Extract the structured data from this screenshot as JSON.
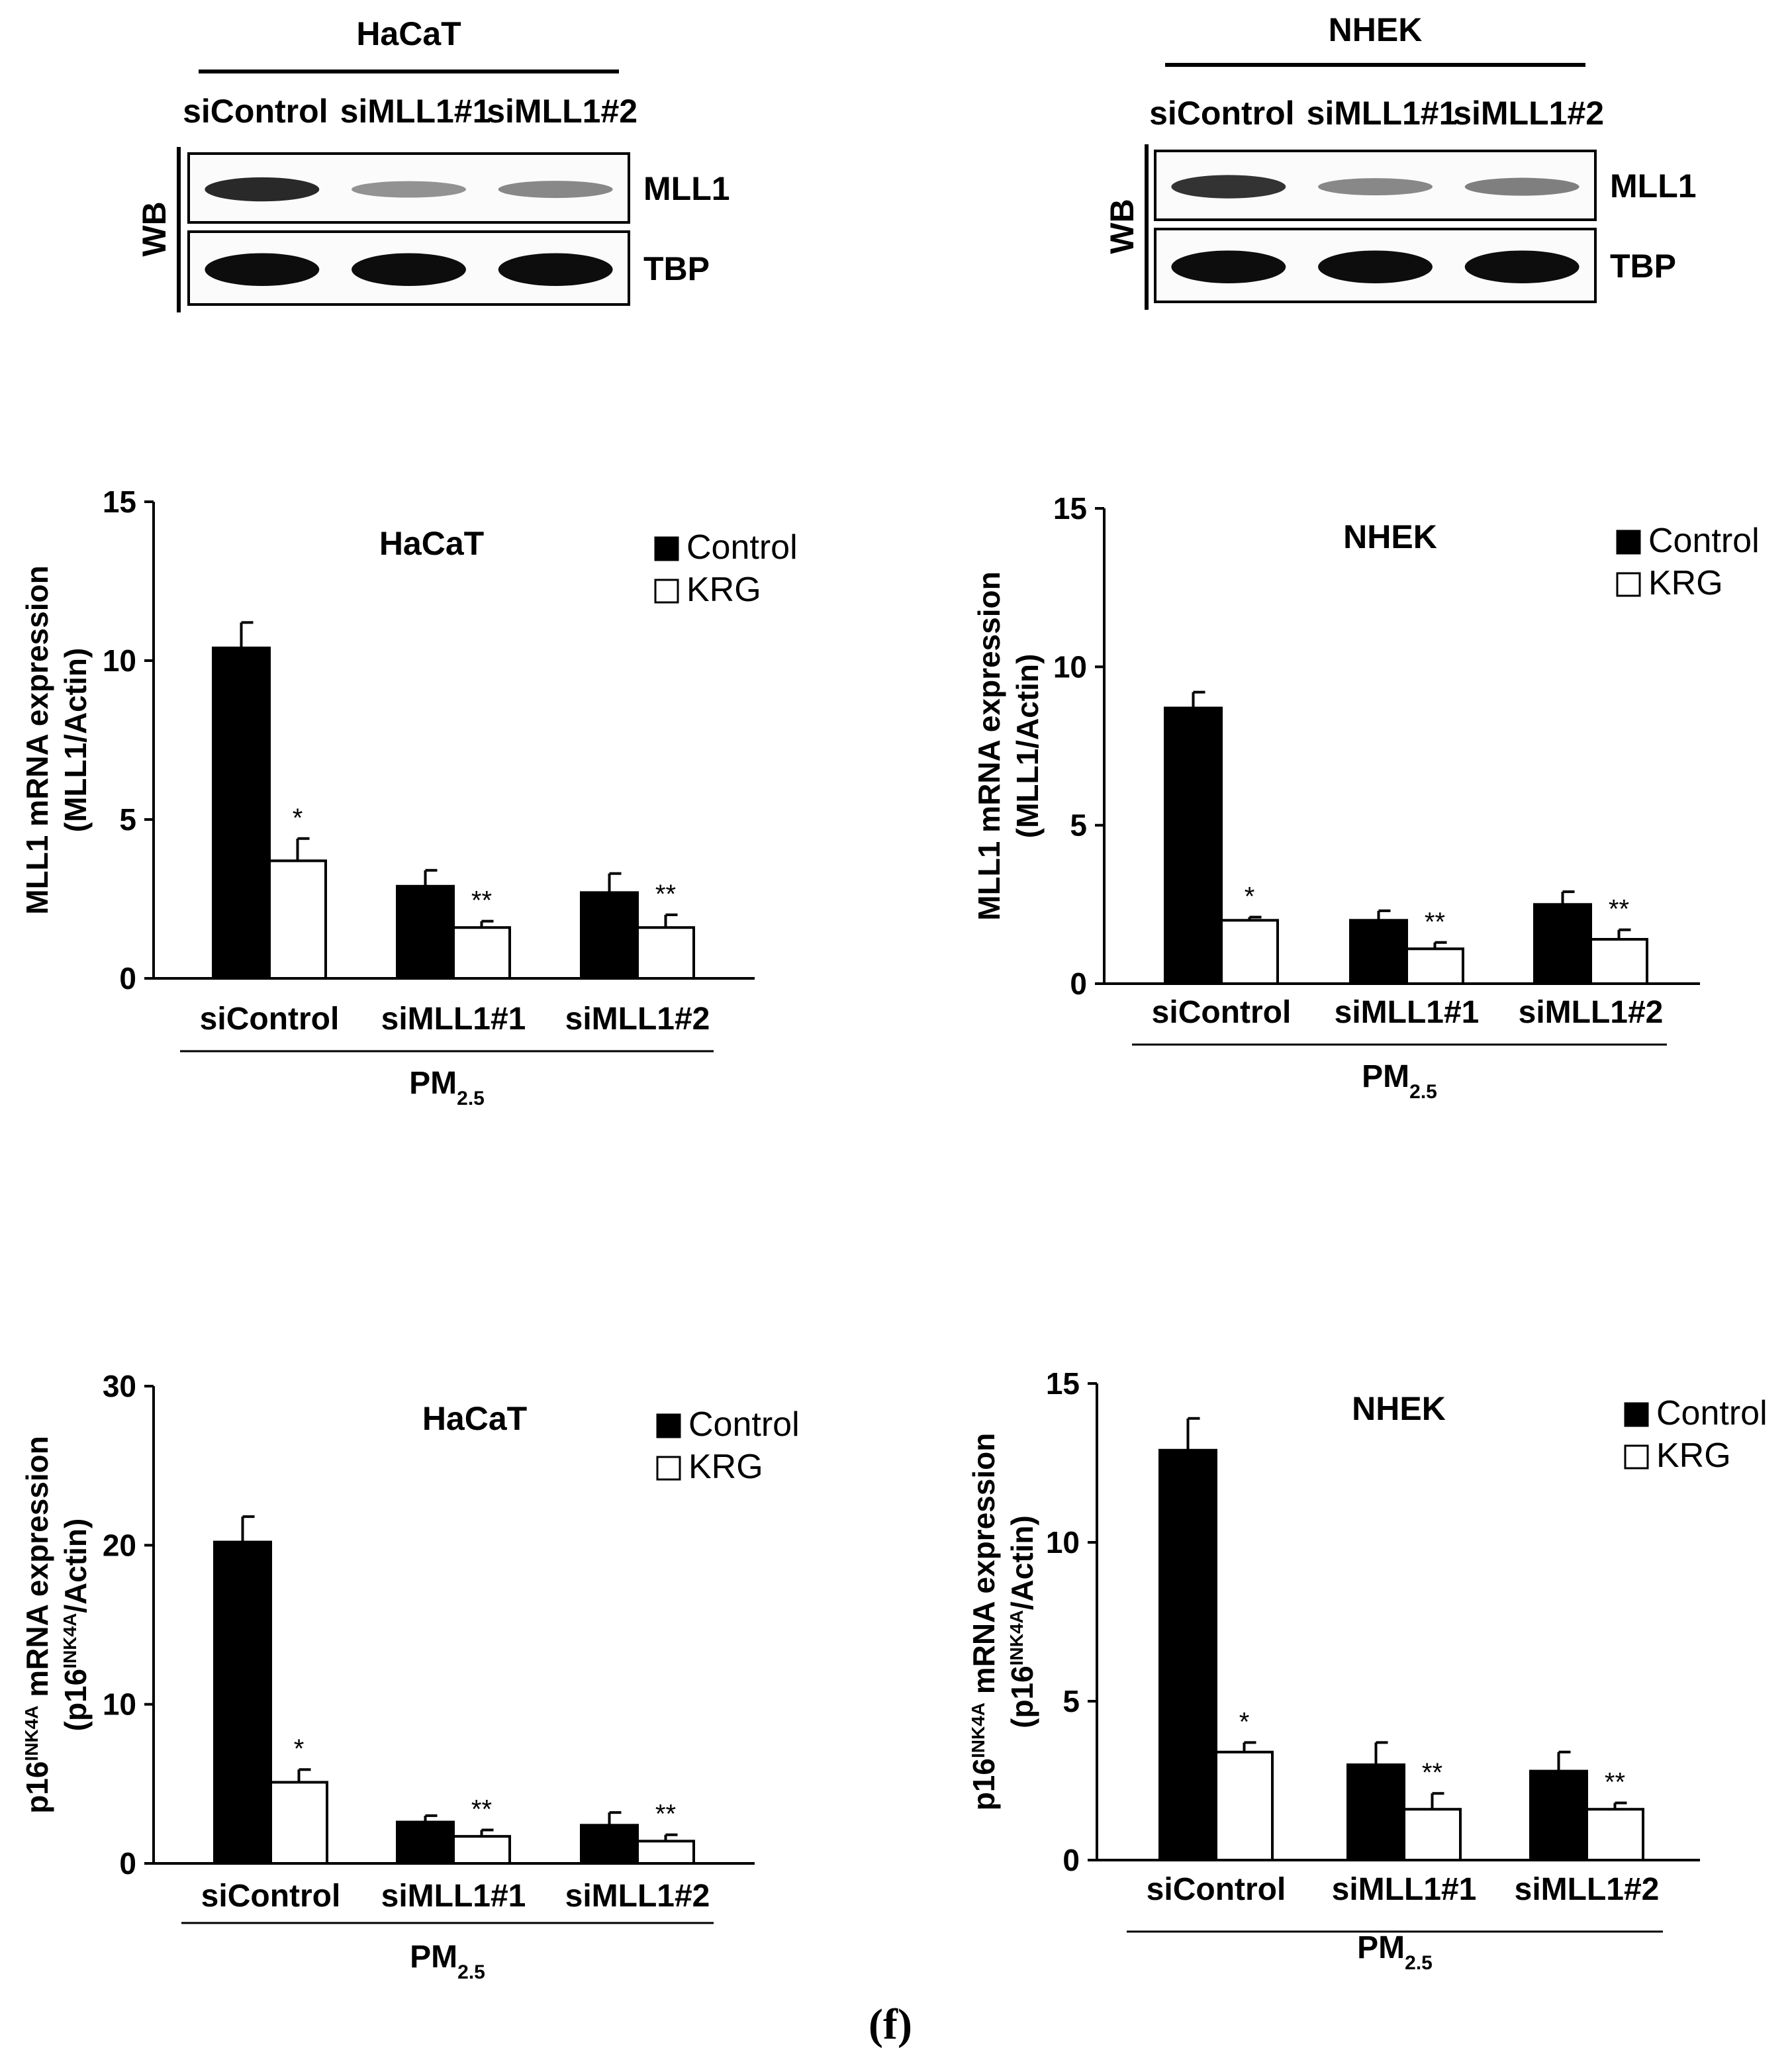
{
  "western_blots": [
    {
      "cell_line": "HaCaT",
      "method_label": "WB",
      "lanes": [
        "siControl",
        "siMLL1#1",
        "siMLL1#2"
      ],
      "rows": [
        {
          "label": "MLL1",
          "band_intensity": [
            0.85,
            0.3,
            0.35
          ]
        },
        {
          "label": "TBP",
          "band_intensity": [
            1,
            1,
            1
          ]
        }
      ]
    },
    {
      "cell_line": "NHEK",
      "method_label": "WB",
      "lanes": [
        "siControl",
        "siMLL1#1",
        "siMLL1#2"
      ],
      "rows": [
        {
          "label": "MLL1",
          "band_intensity": [
            0.8,
            0.35,
            0.4
          ]
        },
        {
          "label": "TBP",
          "band_intensity": [
            1,
            1,
            1
          ]
        }
      ]
    }
  ],
  "chart_data": [
    {
      "type": "bar",
      "title": "HaCaT",
      "ylabel_line1": "MLL1 mRNA expression",
      "ylabel_line2": "(MLL1/Actin)",
      "ylim": [
        0,
        15
      ],
      "yticks": [
        "0",
        "5",
        "10",
        "15"
      ],
      "categories": [
        "siControl",
        "siMLL1#1",
        "siMLL1#2"
      ],
      "group_label": "PM",
      "group_label_sub": "2.5",
      "series": [
        {
          "name": "Control",
          "values": [
            10.4,
            2.9,
            2.7
          ],
          "errors": [
            0.8,
            0.5,
            0.6
          ]
        },
        {
          "name": "KRG",
          "values": [
            3.7,
            1.6,
            1.6
          ],
          "errors": [
            0.7,
            0.2,
            0.4
          ]
        }
      ],
      "significance": [
        "*",
        "**",
        "**"
      ]
    },
    {
      "type": "bar",
      "title": "NHEK",
      "ylabel_line1": "MLL1 mRNA expression",
      "ylabel_line2": "(MLL1/Actin)",
      "ylim": [
        0,
        15
      ],
      "yticks": [
        "0",
        "5",
        "10",
        "15"
      ],
      "categories": [
        "siControl",
        "siMLL1#1",
        "siMLL1#2"
      ],
      "group_label": "PM",
      "group_label_sub": "2.5",
      "series": [
        {
          "name": "Control",
          "values": [
            8.7,
            2.0,
            2.5
          ],
          "errors": [
            0.5,
            0.3,
            0.4
          ]
        },
        {
          "name": "KRG",
          "values": [
            2.0,
            1.1,
            1.4
          ],
          "errors": [
            0.1,
            0.2,
            0.3
          ]
        }
      ],
      "significance": [
        "*",
        "**",
        "**"
      ]
    },
    {
      "type": "bar",
      "title": "HaCaT",
      "ylabel_p16": true,
      "ylabel_line1_a": "p16",
      "ylabel_line1_sup": "INK4A",
      "ylabel_line1_b": " mRNA expression",
      "ylabel_line2_a": "(p16",
      "ylabel_line2_sup": "INK4A",
      "ylabel_line2_b": "/Actin)",
      "ylim": [
        0,
        30
      ],
      "yticks": [
        "0",
        "10",
        "20",
        "30"
      ],
      "categories": [
        "siControl",
        "siMLL1#1",
        "siMLL1#2"
      ],
      "group_label": "PM",
      "group_label_sub": "2.5",
      "series": [
        {
          "name": "Control",
          "values": [
            20.2,
            2.6,
            2.4
          ],
          "errors": [
            1.6,
            0.4,
            0.8
          ]
        },
        {
          "name": "KRG",
          "values": [
            5.1,
            1.7,
            1.4
          ],
          "errors": [
            0.8,
            0.4,
            0.4
          ]
        }
      ],
      "significance": [
        "*",
        "**",
        "**"
      ]
    },
    {
      "type": "bar",
      "title": "NHEK",
      "ylabel_p16": true,
      "ylabel_line1_a": "p16",
      "ylabel_line1_sup": "INK4A",
      "ylabel_line1_b": " mRNA expression",
      "ylabel_line2_a": "(p16",
      "ylabel_line2_sup": "INK4A",
      "ylabel_line2_b": "/Actin)",
      "ylim": [
        0,
        15
      ],
      "yticks": [
        "0",
        "5",
        "10",
        "15"
      ],
      "categories": [
        "siControl",
        "siMLL1#1",
        "siMLL1#2"
      ],
      "group_label": "PM",
      "group_label_sub": "2.5",
      "series": [
        {
          "name": "Control",
          "values": [
            12.9,
            3.0,
            2.8
          ],
          "errors": [
            1.0,
            0.7,
            0.6
          ]
        },
        {
          "name": "KRG",
          "values": [
            3.4,
            1.6,
            1.6
          ],
          "errors": [
            0.3,
            0.5,
            0.2
          ]
        }
      ],
      "significance": [
        "*",
        "**",
        "**"
      ]
    }
  ],
  "panel_label": "(f)",
  "colors": {
    "control": "#000000",
    "krg": "#ffffff",
    "axis": "#000000"
  }
}
